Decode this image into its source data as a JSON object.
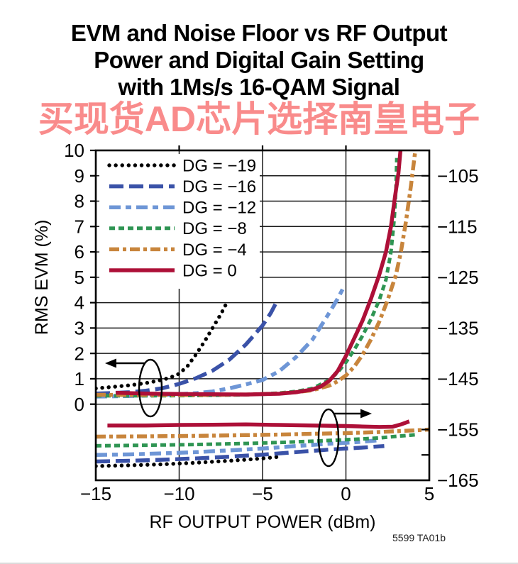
{
  "title": {
    "line1": "EVM and Noise Floor vs RF Output",
    "line2": "Power and Digital Gain Setting",
    "line3": "with 1Ms/s 16-QAM Signal"
  },
  "watermark": {
    "text": "买现货AD芯片选择南皇电子",
    "color": "#f85f5f"
  },
  "footnote": "5599 TA01b",
  "chart_data": {
    "type": "line",
    "title": "EVM and Noise Floor vs RF Output Power and Digital Gain Setting with 1Ms/s 16-QAM Signal",
    "xlabel": "RF OUTPUT POWER (dBm)",
    "ylabel_left": "RMS EVM (%)",
    "x_range": [
      -15,
      5
    ],
    "x_ticks": [
      -15,
      -10,
      -5,
      0,
      5
    ],
    "y_left_range": [
      0,
      10
    ],
    "y_left_ticks": [
      0,
      1,
      2,
      3,
      4,
      5,
      6,
      7,
      8,
      9,
      10
    ],
    "y_right_range": [
      -165,
      -100
    ],
    "y_right_tick_step": 5,
    "y_right_labeled_ticks": [
      -105,
      -115,
      -125,
      -135,
      -145,
      -155,
      -165
    ],
    "grid": true,
    "legend_position": "top-left",
    "series": [
      {
        "name": "DG = −19",
        "color": "#000000",
        "dash": "0.1 9",
        "cap": "round",
        "width": 5.4,
        "evm_points": [
          [
            -15,
            0.62
          ],
          [
            -14,
            0.68
          ],
          [
            -13,
            0.74
          ],
          [
            -12,
            0.83
          ],
          [
            -11,
            0.96
          ],
          [
            -10.5,
            1.06
          ],
          [
            -10,
            1.2
          ],
          [
            -9.5,
            1.5
          ],
          [
            -9,
            1.95
          ],
          [
            -8.5,
            2.45
          ],
          [
            -8,
            3.0
          ],
          [
            -7.5,
            3.55
          ],
          [
            -7.1,
            4.05
          ]
        ],
        "noise_points": [
          [
            -15,
            -162.2
          ],
          [
            -13,
            -162.05
          ],
          [
            -12,
            -161.95
          ],
          [
            -11,
            -161.85
          ],
          [
            -10,
            -161.7
          ],
          [
            -9,
            -161.55
          ],
          [
            -8,
            -161.35
          ],
          [
            -7,
            -161.15
          ],
          [
            -6,
            -160.95
          ],
          [
            -5,
            -160.7
          ],
          [
            -4.1,
            -160.4
          ]
        ]
      },
      {
        "name": "DG = −16",
        "color": "#3a52a8",
        "dash": "20 8",
        "cap": "butt",
        "width": 5.5,
        "evm_points": [
          [
            -15,
            0.42
          ],
          [
            -14,
            0.44
          ],
          [
            -13,
            0.47
          ],
          [
            -12,
            0.53
          ],
          [
            -11,
            0.63
          ],
          [
            -10,
            0.8
          ],
          [
            -9,
            1.02
          ],
          [
            -8,
            1.32
          ],
          [
            -7,
            1.75
          ],
          [
            -6,
            2.35
          ],
          [
            -5,
            3.1
          ],
          [
            -4.5,
            3.6
          ],
          [
            -4.1,
            4.1
          ]
        ],
        "noise_points": [
          [
            -15,
            -161.3
          ],
          [
            -13,
            -161.15
          ],
          [
            -11,
            -160.95
          ],
          [
            -9,
            -160.7
          ],
          [
            -7,
            -160.35
          ],
          [
            -5,
            -159.95
          ],
          [
            -3,
            -159.45
          ],
          [
            -1,
            -158.95
          ],
          [
            0,
            -158.75
          ],
          [
            1,
            -158.55
          ],
          [
            2.3,
            -158.25
          ]
        ]
      },
      {
        "name": "DG = −12",
        "color": "#6e96d6",
        "dash": "16 7 8 7",
        "cap": "butt",
        "width": 5.5,
        "evm_points": [
          [
            -15,
            0.3
          ],
          [
            -13,
            0.32
          ],
          [
            -11,
            0.36
          ],
          [
            -9,
            0.43
          ],
          [
            -8,
            0.5
          ],
          [
            -7,
            0.62
          ],
          [
            -6,
            0.78
          ],
          [
            -5,
            0.95
          ],
          [
            -4,
            1.3
          ],
          [
            -3,
            1.85
          ],
          [
            -2,
            2.55
          ],
          [
            -1,
            3.6
          ],
          [
            -0.5,
            4.15
          ],
          [
            -0.1,
            4.65
          ]
        ],
        "noise_points": [
          [
            -15,
            -160.0
          ],
          [
            -13,
            -159.9
          ],
          [
            -11,
            -159.7
          ],
          [
            -9,
            -159.45
          ],
          [
            -7,
            -159.1
          ],
          [
            -5,
            -158.75
          ],
          [
            -3,
            -158.25
          ],
          [
            -1,
            -157.8
          ],
          [
            0,
            -157.6
          ],
          [
            1,
            -157.4
          ],
          [
            2,
            -157.1
          ]
        ]
      },
      {
        "name": "DG = −8",
        "color": "#2f9553",
        "dash": "8 5",
        "cap": "butt",
        "width": 5.0,
        "evm_points": [
          [
            -15,
            0.33
          ],
          [
            -12,
            0.33
          ],
          [
            -9,
            0.34
          ],
          [
            -6,
            0.37
          ],
          [
            -4,
            0.44
          ],
          [
            -3,
            0.5
          ],
          [
            -2,
            0.62
          ],
          [
            -1,
            0.95
          ],
          [
            -0.5,
            1.25
          ],
          [
            0,
            1.65
          ],
          [
            0.5,
            2.15
          ],
          [
            1,
            2.7
          ],
          [
            1.5,
            3.35
          ],
          [
            2,
            4.1
          ],
          [
            2.4,
            4.9
          ],
          [
            2.7,
            6.0
          ],
          [
            2.9,
            7.3
          ],
          [
            3.0,
            8.5
          ],
          [
            3.05,
            9.7
          ]
        ],
        "noise_points": [
          [
            -15,
            -158.2
          ],
          [
            -12,
            -158.1
          ],
          [
            -9,
            -157.95
          ],
          [
            -6,
            -157.75
          ],
          [
            -4,
            -157.55
          ],
          [
            -2,
            -157.3
          ],
          [
            0,
            -157.0
          ],
          [
            1,
            -156.85
          ],
          [
            2,
            -156.65
          ],
          [
            3,
            -156.35
          ],
          [
            4.3,
            -156.0
          ]
        ]
      },
      {
        "name": "DG = −4",
        "color": "#c8853c",
        "dash": "14 5 5 5",
        "cap": "butt",
        "width": 5.5,
        "evm_points": [
          [
            -15,
            0.37
          ],
          [
            -12,
            0.36
          ],
          [
            -9,
            0.36
          ],
          [
            -6,
            0.38
          ],
          [
            -4,
            0.42
          ],
          [
            -3,
            0.47
          ],
          [
            -2,
            0.55
          ],
          [
            -1,
            0.73
          ],
          [
            -0.5,
            0.9
          ],
          [
            0,
            1.13
          ],
          [
            0.5,
            1.48
          ],
          [
            1,
            1.95
          ],
          [
            1.5,
            2.55
          ],
          [
            2,
            3.25
          ],
          [
            2.5,
            4.1
          ],
          [
            3,
            5.1
          ],
          [
            3.3,
            6.0
          ],
          [
            3.6,
            7.2
          ],
          [
            3.9,
            8.6
          ],
          [
            4.2,
            10.2
          ]
        ],
        "noise_points": [
          [
            -15,
            -156.4
          ],
          [
            -12,
            -156.35
          ],
          [
            -9,
            -156.25
          ],
          [
            -6,
            -156.1
          ],
          [
            -4,
            -156.0
          ],
          [
            -2,
            -155.85
          ],
          [
            0,
            -155.7
          ],
          [
            2,
            -155.5
          ],
          [
            3.5,
            -155.25
          ],
          [
            5,
            -155.0
          ]
        ]
      },
      {
        "name": "DG = 0",
        "color": "#ad1038",
        "dash": "",
        "cap": "butt",
        "width": 5.5,
        "evm_points": [
          [
            -13.8,
            0.45
          ],
          [
            -12,
            0.42
          ],
          [
            -10,
            0.4
          ],
          [
            -8,
            0.39
          ],
          [
            -6,
            0.38
          ],
          [
            -4,
            0.41
          ],
          [
            -3,
            0.47
          ],
          [
            -2,
            0.58
          ],
          [
            -1.5,
            0.7
          ],
          [
            -1,
            0.92
          ],
          [
            -0.5,
            1.3
          ],
          [
            0,
            1.9
          ],
          [
            0.5,
            2.6
          ],
          [
            1,
            3.3
          ],
          [
            1.5,
            4.15
          ],
          [
            2,
            5.1
          ],
          [
            2.4,
            6.0
          ],
          [
            2.7,
            7.0
          ],
          [
            2.95,
            8.2
          ],
          [
            3.15,
            9.1
          ],
          [
            3.3,
            10.2
          ]
        ],
        "noise_points": [
          [
            -14.3,
            -154.2
          ],
          [
            -12,
            -154.2
          ],
          [
            -10,
            -154.1
          ],
          [
            -8,
            -154.05
          ],
          [
            -6,
            -154.0
          ],
          [
            -4,
            -154.1
          ],
          [
            -2,
            -154.2
          ],
          [
            0,
            -154.3
          ],
          [
            1,
            -154.4
          ],
          [
            2,
            -154.5
          ],
          [
            2.8,
            -154.45
          ],
          [
            3.3,
            -154.0
          ],
          [
            3.8,
            -153.4
          ]
        ]
      }
    ],
    "annotations": [
      {
        "type": "ellipse",
        "cx": 212,
        "cy": 547,
        "rx": 16,
        "ry": 40,
        "meaning": "points to EVM curves, read left axis"
      },
      {
        "type": "arrow",
        "x1": 204,
        "y1": 512,
        "x2": 148,
        "y2": 512
      },
      {
        "type": "ellipse",
        "cx": 463,
        "cy": 617,
        "rx": 14,
        "ry": 40,
        "meaning": "points to noise floor curves, read right axis"
      },
      {
        "type": "arrow",
        "x1": 470,
        "y1": 583,
        "x2": 524,
        "y2": 583
      }
    ]
  }
}
